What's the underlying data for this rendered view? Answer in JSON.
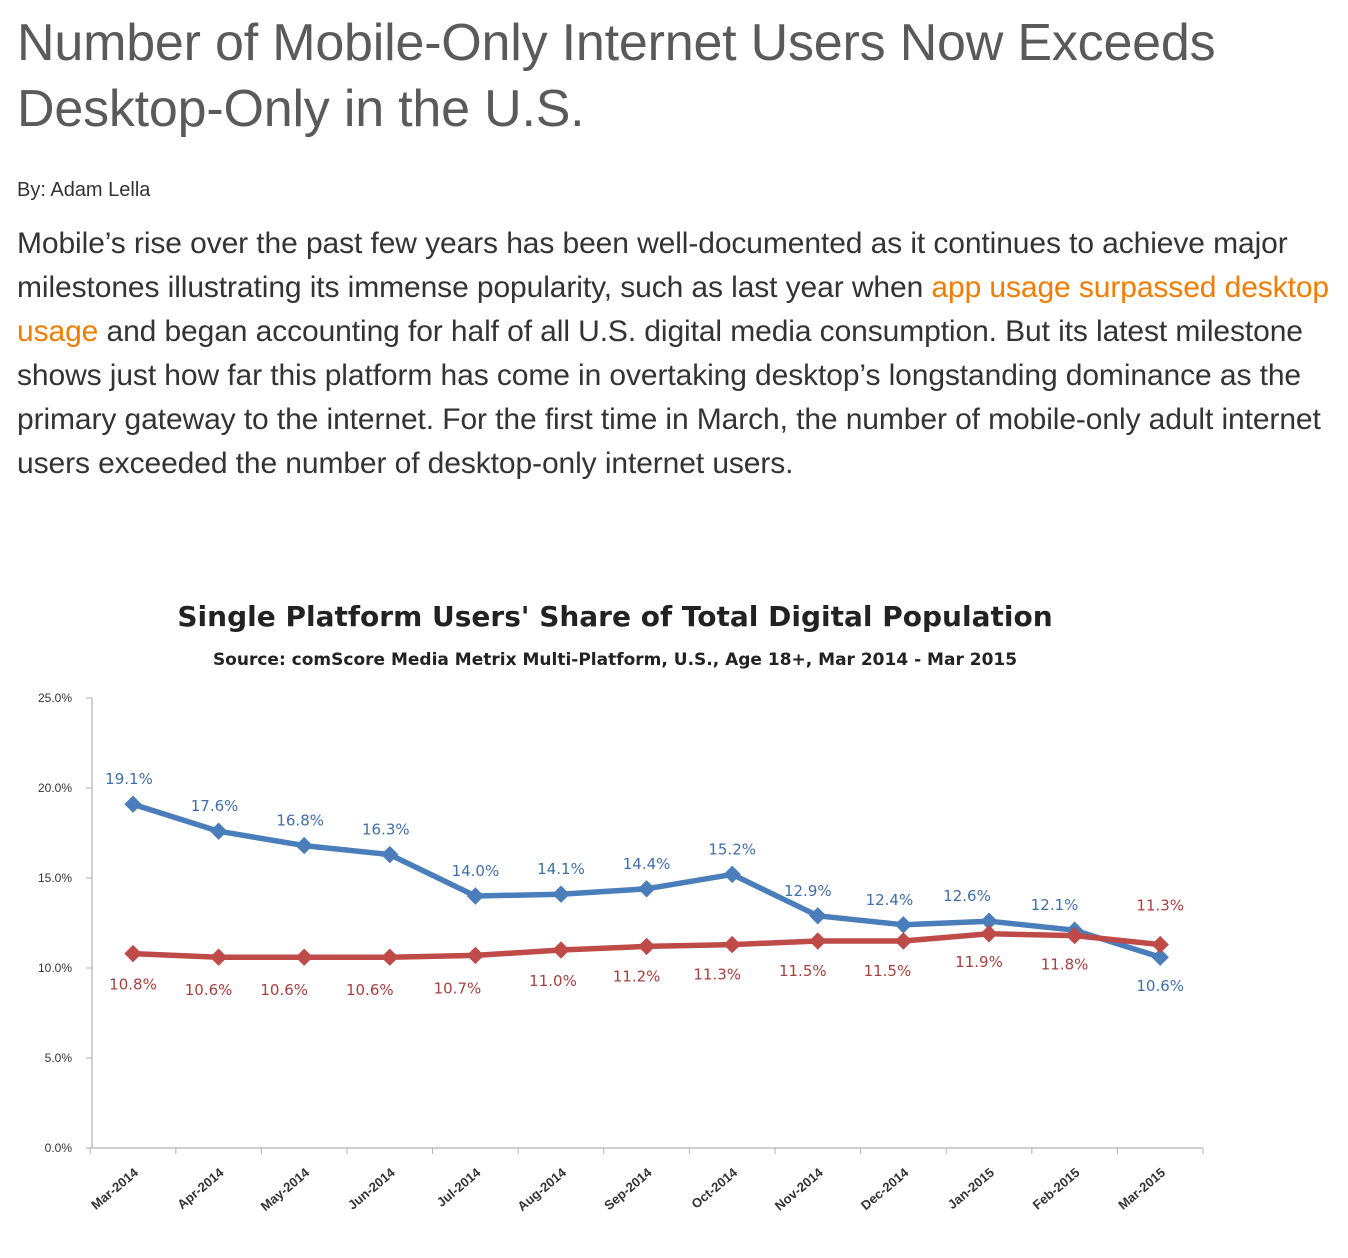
{
  "article": {
    "headline": "Number of Mobile-Only Internet Users Now Exceeds Desktop-Only in the U.S.",
    "byline": "By: Adam Lella",
    "paragraph_before_link": "Mobile’s rise over the past few years has been well-documented as it continues to achieve major milestones illustrating its immense popularity, such as last year when ",
    "link_text": "app usage surpassed desktop usage",
    "paragraph_after_link": " and began accounting for half of all U.S. digital media consumption. But its latest milestone shows just how far this platform has come in overtaking desktop’s longstanding dominance as the primary gateway to the internet. For the first time in March, the number of mobile-only adult internet users exceeded the number of desktop-only internet users.",
    "link_color": "#f07c00"
  },
  "chart_data": {
    "type": "line",
    "title": "Single Platform Users' Share of Total Digital Population",
    "subtitle": "Source: comScore Media Metrix Multi-Platform, U.S., Age 18+, Mar 2014 - Mar 2015",
    "xlabel": "",
    "ylabel": "",
    "ylim": [
      0,
      25
    ],
    "yticks": [
      "0.0%",
      "5.0%",
      "10.0%",
      "15.0%",
      "20.0%",
      "25.0%"
    ],
    "categories": [
      "Mar-2014",
      "Apr-2014",
      "May-2014",
      "Jun-2014",
      "Jul-2014",
      "Aug-2014",
      "Sep-2014",
      "Oct-2014",
      "Nov-2014",
      "Dec-2014",
      "Jan-2015",
      "Feb-2015",
      "Mar-2015"
    ],
    "grid": false,
    "legend": "none",
    "series": [
      {
        "color": "#4a7ebb",
        "label_color": "#3f6fa8",
        "values": [
          19.1,
          17.6,
          16.8,
          16.3,
          14.0,
          14.1,
          14.4,
          15.2,
          12.9,
          12.4,
          12.6,
          12.1,
          10.6
        ],
        "labels": [
          "19.1%",
          "17.6%",
          "16.8%",
          "16.3%",
          "14.0%",
          "14.1%",
          "14.4%",
          "15.2%",
          "12.9%",
          "12.4%",
          "12.6%",
          "12.1%",
          "10.6%"
        ]
      },
      {
        "color": "#be4b48",
        "label_color": "#a5403d",
        "values": [
          10.8,
          10.6,
          10.6,
          10.6,
          10.7,
          11.0,
          11.2,
          11.3,
          11.5,
          11.5,
          11.9,
          11.8,
          11.3
        ],
        "labels": [
          "10.8%",
          "10.6%",
          "10.6%",
          "10.6%",
          "10.7%",
          "11.0%",
          "11.2%",
          "11.3%",
          "11.5%",
          "11.5%",
          "11.9%",
          "11.8%",
          "11.3%"
        ]
      }
    ]
  }
}
